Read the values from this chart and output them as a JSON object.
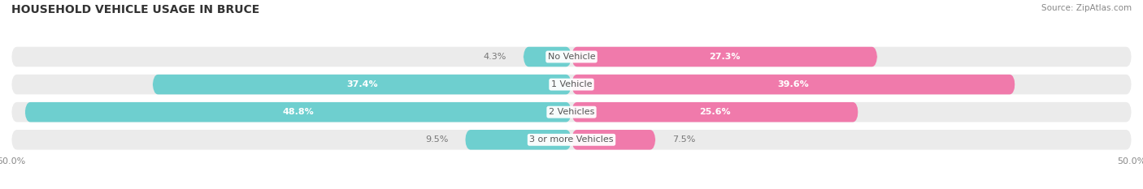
{
  "title": "HOUSEHOLD VEHICLE USAGE IN BRUCE",
  "source": "Source: ZipAtlas.com",
  "categories": [
    "No Vehicle",
    "1 Vehicle",
    "2 Vehicles",
    "3 or more Vehicles"
  ],
  "owner_values": [
    4.3,
    37.4,
    48.8,
    9.5
  ],
  "renter_values": [
    27.3,
    39.6,
    25.6,
    7.5
  ],
  "owner_color": "#6ecfcf",
  "renter_color": "#f07aab",
  "bar_bg_color": "#ebebeb",
  "x_min": -50.0,
  "x_max": 50.0,
  "bar_height": 0.72,
  "figsize": [
    14.06,
    2.33
  ],
  "dpi": 100,
  "title_fontsize": 10,
  "source_fontsize": 7.5,
  "bar_label_fontsize": 8,
  "cat_label_fontsize": 8,
  "axis_label_fontsize": 8,
  "legend_fontsize": 8.5,
  "owner_threshold": 15,
  "renter_threshold": 15
}
